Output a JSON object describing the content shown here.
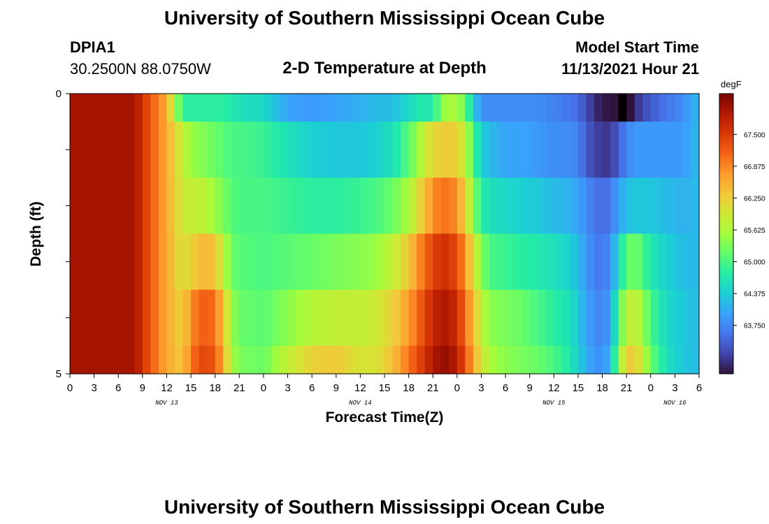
{
  "header": {
    "title": "University of Southern Mississippi Ocean Cube",
    "station_id": "DPIA1",
    "station_coords": "30.2500N  88.0750W",
    "plot_title": "2-D Temperature at Depth",
    "start_label": "Model Start Time",
    "start_time": "11/13/2021 Hour 21"
  },
  "footer": {
    "title": "University of Southern Mississippi Ocean Cube"
  },
  "chart_data": {
    "type": "heatmap",
    "title": "2-D Temperature at Depth",
    "xlabel": "Forecast Time(Z)",
    "ylabel": "Depth (ft)",
    "colorbar_unit": "degF",
    "colorbar_ticks": [
      "67.500",
      "66.875",
      "66.250",
      "65.625",
      "65.000",
      "64.375",
      "63.750"
    ],
    "color_range": [
      62.8,
      68.3
    ],
    "colormap": [
      "#30123b",
      "#4145ab",
      "#4675ed",
      "#39a2fc",
      "#1bcfd4",
      "#24eca6",
      "#61fc6c",
      "#a4fc3b",
      "#d1e834",
      "#f3c63a",
      "#fe9b2d",
      "#f36315",
      "#d93806",
      "#b11901",
      "#7a0403"
    ],
    "x_tick_labels": [
      "0",
      "3",
      "6",
      "9",
      "12",
      "15",
      "18",
      "21",
      "0",
      "3",
      "6",
      "9",
      "12",
      "15",
      "18",
      "21",
      "0",
      "3",
      "6",
      "9",
      "12",
      "15",
      "18",
      "21",
      "0",
      "3",
      "6"
    ],
    "x_hours_range": [
      0,
      78
    ],
    "day_labels": [
      {
        "label": "NOV 13",
        "hour": 12
      },
      {
        "label": "NOV 14",
        "hour": 36
      },
      {
        "label": "NOV 15",
        "hour": 60
      },
      {
        "label": "NOV 16",
        "hour": 75
      }
    ],
    "y_tick_labels": [
      "0",
      "5"
    ],
    "y_range": [
      0,
      5
    ],
    "depth_levels_ft": [
      0,
      1,
      2,
      3,
      4,
      5
    ],
    "time_anchor_hours": [
      0,
      8,
      10,
      12,
      14,
      15,
      16,
      17,
      18,
      19,
      20,
      21,
      24,
      27,
      30,
      33,
      36,
      38,
      40,
      42,
      44,
      45,
      46,
      47,
      48,
      49,
      50,
      51,
      52,
      54,
      56,
      58,
      60,
      62,
      63,
      64,
      65,
      66,
      67,
      68,
      69,
      70,
      71,
      72,
      74,
      76,
      78
    ],
    "temperature_degF": [
      [
        68.0,
        68.0,
        67.2,
        66.6,
        64.8,
        64.8,
        64.8,
        64.8,
        64.8,
        64.8,
        64.7,
        64.6,
        64.5,
        64.0,
        63.9,
        64.0,
        64.1,
        64.2,
        64.2,
        64.5,
        64.8,
        64.6,
        65.4,
        65.6,
        65.6,
        65.2,
        64.4,
        63.8,
        63.8,
        63.8,
        63.8,
        63.8,
        63.7,
        63.6,
        63.5,
        63.3,
        63.0,
        62.9,
        62.8,
        62.8,
        62.6,
        63.0,
        63.2,
        63.4,
        63.6,
        63.8,
        64.2
      ],
      [
        68.0,
        68.0,
        67.2,
        66.6,
        65.8,
        65.5,
        65.4,
        65.3,
        65.2,
        65.1,
        65.0,
        65.0,
        64.9,
        64.6,
        64.4,
        64.3,
        64.3,
        64.4,
        64.6,
        65.1,
        65.8,
        66.2,
        66.2,
        66.3,
        66.2,
        65.8,
        65.0,
        64.4,
        64.2,
        64.0,
        64.0,
        63.9,
        63.8,
        63.8,
        63.7,
        63.4,
        63.2,
        63.1,
        63.1,
        63.4,
        63.7,
        63.9,
        63.9,
        63.9,
        63.9,
        63.9,
        64.2
      ],
      [
        68.0,
        68.0,
        67.2,
        66.6,
        65.9,
        65.8,
        65.8,
        65.7,
        65.5,
        65.3,
        65.1,
        65.0,
        65.0,
        64.9,
        64.8,
        64.8,
        64.9,
        65.0,
        65.2,
        65.6,
        66.4,
        66.8,
        67.0,
        67.0,
        66.8,
        66.2,
        65.4,
        64.8,
        64.6,
        64.5,
        64.4,
        64.3,
        64.2,
        64.1,
        64.0,
        63.8,
        63.6,
        63.5,
        63.6,
        64.0,
        64.2,
        64.3,
        64.3,
        64.3,
        64.2,
        64.1,
        64.2
      ],
      [
        68.0,
        68.0,
        67.2,
        66.6,
        66.0,
        66.2,
        66.4,
        66.5,
        66.3,
        65.8,
        65.2,
        65.1,
        65.0,
        65.1,
        65.2,
        65.3,
        65.4,
        65.5,
        65.8,
        66.3,
        67.1,
        67.4,
        67.6,
        67.6,
        67.3,
        66.8,
        66.0,
        65.4,
        65.0,
        64.9,
        64.8,
        64.7,
        64.6,
        64.4,
        64.2,
        63.9,
        63.7,
        63.6,
        63.8,
        64.5,
        65.1,
        65.3,
        65.0,
        64.7,
        64.4,
        64.2,
        64.2
      ],
      [
        68.0,
        68.0,
        67.2,
        66.6,
        66.2,
        66.8,
        67.1,
        67.2,
        67.0,
        66.4,
        65.5,
        65.2,
        65.1,
        65.4,
        65.7,
        65.8,
        65.8,
        65.9,
        66.2,
        66.7,
        67.4,
        67.7,
        67.9,
        67.9,
        67.6,
        67.1,
        66.4,
        65.8,
        65.4,
        65.3,
        65.2,
        65.0,
        64.8,
        64.6,
        64.3,
        64.0,
        63.8,
        63.7,
        64.0,
        65.0,
        65.7,
        65.9,
        65.5,
        65.0,
        64.5,
        64.3,
        64.2
      ],
      [
        68.0,
        68.0,
        67.2,
        66.6,
        66.3,
        67.0,
        67.3,
        67.4,
        67.2,
        66.6,
        65.6,
        65.3,
        65.2,
        65.8,
        66.2,
        66.3,
        66.0,
        66.0,
        66.4,
        67.0,
        67.6,
        67.9,
        68.1,
        68.1,
        67.8,
        67.3,
        66.6,
        66.0,
        65.6,
        65.4,
        65.3,
        65.2,
        65.0,
        64.7,
        64.4,
        64.1,
        63.9,
        63.8,
        64.2,
        65.4,
        66.2,
        66.3,
        65.8,
        65.2,
        64.6,
        64.3,
        64.2
      ]
    ],
    "black_marker_hour": 68,
    "black_marker_depth_ft": 0
  }
}
